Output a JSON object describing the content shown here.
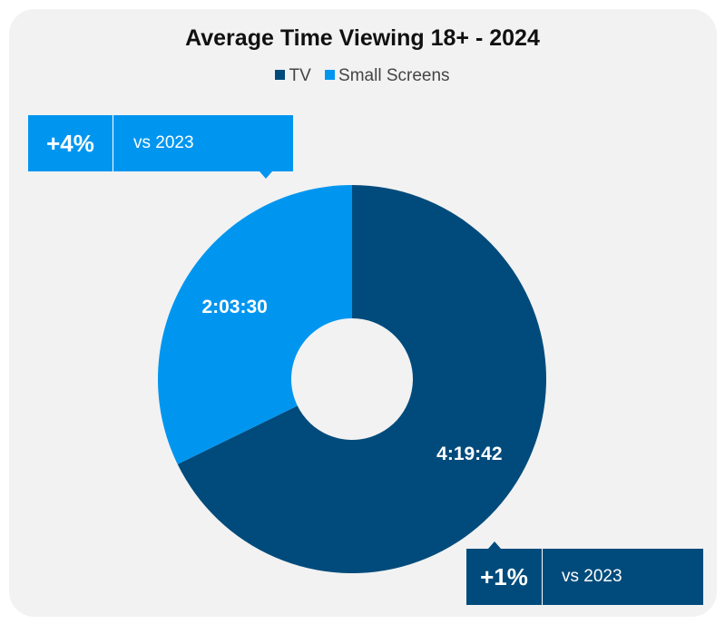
{
  "chart_data": {
    "type": "pie",
    "title": "Average Time Viewing 18+ - 2024",
    "legend": [
      "TV",
      "Small Screens"
    ],
    "legend_position": "top-center",
    "series": [
      {
        "name": "TV",
        "value_label": "4:19:42",
        "value_seconds": 15582,
        "color": "#004b7c"
      },
      {
        "name": "Small Screens",
        "value_label": "2:03:30",
        "value_seconds": 7410,
        "color": "#0096f0"
      }
    ],
    "donut": true
  },
  "callouts": {
    "small_screens": {
      "pct": "+4%",
      "vs": "vs 2023"
    },
    "tv": {
      "pct": "+1%",
      "vs": "vs 2023"
    }
  }
}
